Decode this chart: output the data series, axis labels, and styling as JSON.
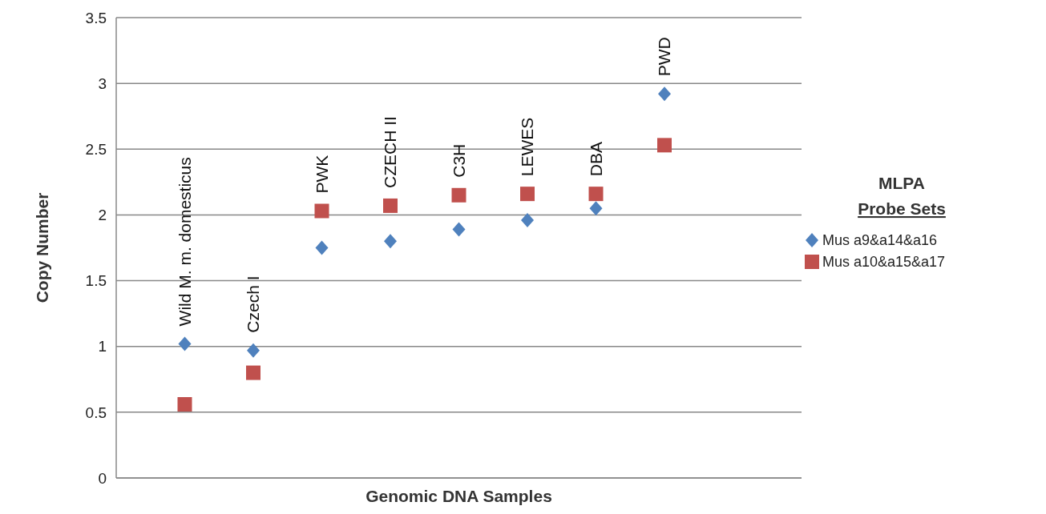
{
  "chart_data": {
    "type": "scatter",
    "xlabel": "Genomic DNA Samples",
    "ylabel": "Copy Number",
    "legend_title": "MLPA\nProbe Sets",
    "categories": [
      "Wild M. m. domesticus",
      "Czech I",
      "PWK",
      "CZECH II",
      "C3H",
      "LEWES",
      "DBA",
      "PWD"
    ],
    "series": [
      {
        "name": "Mus a9&a14&a16",
        "color": "#4f81bd",
        "marker": "diamond",
        "values": [
          1.02,
          0.97,
          1.75,
          1.8,
          1.89,
          1.96,
          2.05,
          2.92
        ]
      },
      {
        "name": "Mus a10&a15&a17",
        "color": "#c0504d",
        "marker": "square",
        "values": [
          0.56,
          0.8,
          2.03,
          2.07,
          2.15,
          2.16,
          2.16,
          2.53
        ]
      }
    ],
    "ylim": [
      0,
      3.5
    ],
    "yticks": [
      0,
      {
        "value": 0.5,
        "label": "0.5"
      },
      1,
      {
        "value": 1.5,
        "label": "1.5"
      },
      2,
      {
        "value": 2.5,
        "label": "2.5"
      },
      3,
      {
        "value": 3.5,
        "label": "3.5"
      }
    ],
    "grid": "y",
    "legend": "right"
  }
}
